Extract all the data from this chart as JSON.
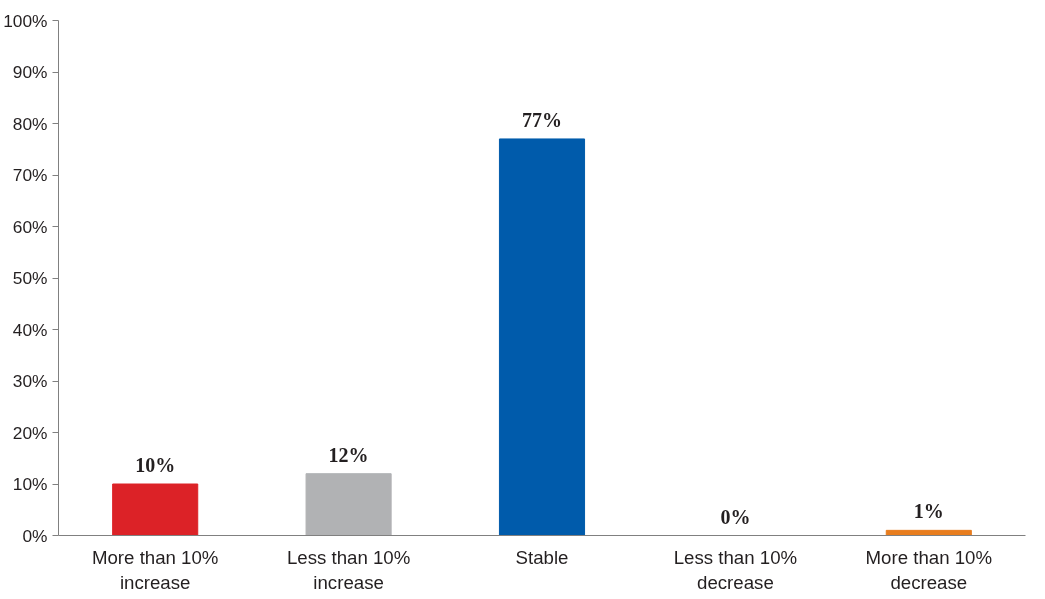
{
  "chart_data": {
    "type": "bar",
    "categories": [
      "More than 10%\nincrease",
      "Less than 10%\nincrease",
      "Stable",
      "Less than 10%\ndecrease",
      "More than 10%\ndecrease"
    ],
    "values": [
      10,
      12,
      77,
      0,
      1
    ],
    "value_labels": [
      "10%",
      "12%",
      "77%",
      "0%",
      "1%"
    ],
    "colors": [
      "#dc2227",
      "#b1b2b4",
      "#005bab",
      "#7f7f7f",
      "#e87d1e"
    ],
    "ylim": [
      0,
      100
    ],
    "yticks": [
      {
        "value": 0,
        "label": "0%"
      },
      {
        "value": 10,
        "label": "10%"
      },
      {
        "value": 20,
        "label": "20%"
      },
      {
        "value": 30,
        "label": "30%"
      },
      {
        "value": 40,
        "label": "40%"
      },
      {
        "value": 50,
        "label": "50%"
      },
      {
        "value": 60,
        "label": "60%"
      },
      {
        "value": 70,
        "label": "70%"
      },
      {
        "value": 80,
        "label": "80%"
      },
      {
        "value": 90,
        "label": "90%"
      },
      {
        "value": 100,
        "label": "100%"
      }
    ],
    "grid": false
  }
}
